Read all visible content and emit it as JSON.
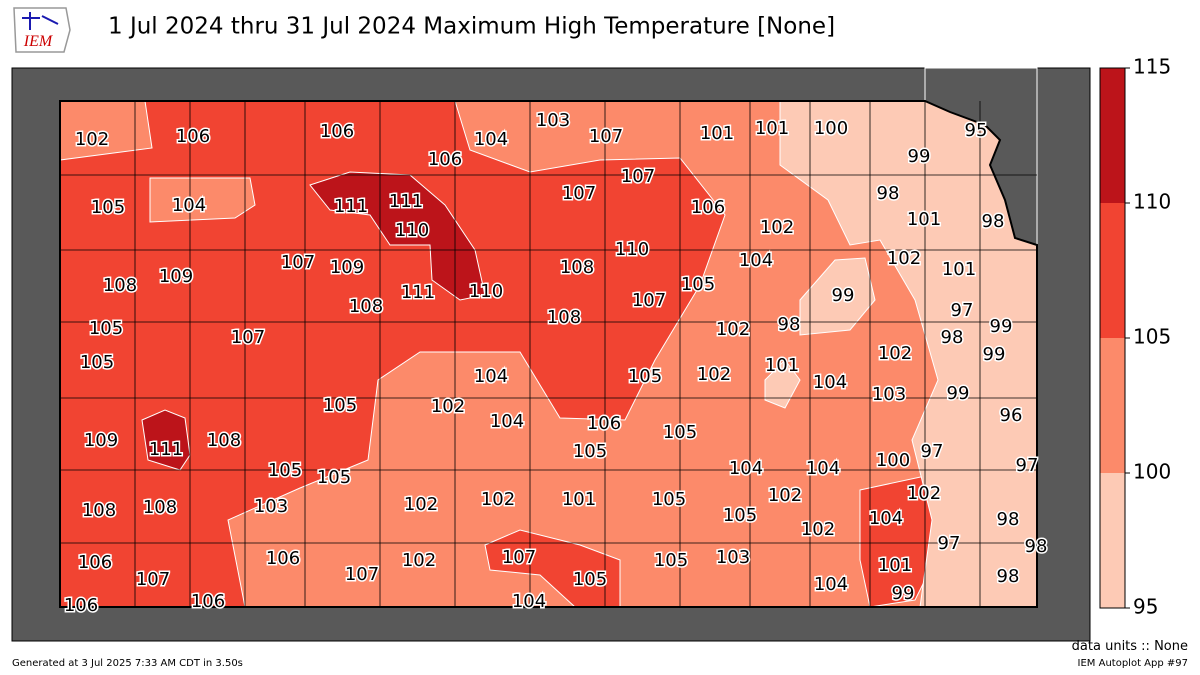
{
  "header": {
    "logo": "IEM",
    "title": "1 Jul 2024 thru 31 Jul 2024 Maximum High Temperature [None]"
  },
  "map": {
    "labels": [
      102,
      106,
      106,
      106,
      104,
      103,
      107,
      101,
      101,
      100,
      95,
      99,
      107,
      107,
      106,
      98,
      101,
      98,
      105,
      104,
      111,
      111,
      110,
      102,
      104,
      102,
      101,
      108,
      109,
      107,
      109,
      108,
      110,
      111,
      110,
      108,
      107,
      105,
      99,
      97,
      99,
      105,
      107,
      108,
      102,
      98,
      98,
      99,
      102,
      105,
      104,
      105,
      102,
      101,
      104,
      103,
      99,
      105,
      102,
      96,
      109,
      111,
      108,
      104,
      106,
      105,
      105,
      100,
      97,
      97,
      105,
      105,
      104,
      104,
      108,
      108,
      103,
      102,
      102,
      101,
      105,
      102,
      102,
      105,
      104,
      98,
      102,
      97,
      98,
      106,
      107,
      106,
      107,
      102,
      107,
      105,
      105,
      103,
      101,
      104,
      98,
      99,
      106,
      106,
      104
    ],
    "colorbar": {
      "ticks": [
        95,
        100,
        105,
        110,
        115
      ],
      "colors": [
        "#fdcab5",
        "#fc8a6a",
        "#f14432",
        "#bc141a"
      ]
    }
  },
  "footer": {
    "generated": "Generated at 3 Jul 2025 7:33 AM CDT in 3.50s",
    "units": "data units :: None",
    "app": "IEM Autoplot App #97"
  }
}
